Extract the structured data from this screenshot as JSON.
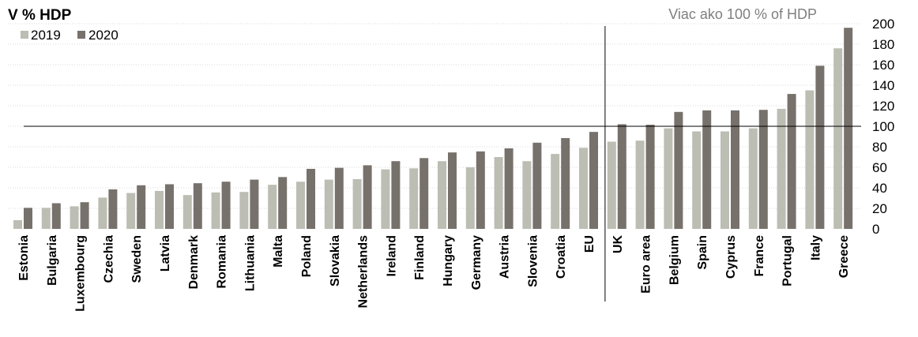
{
  "chart_data": {
    "type": "bar",
    "title": "V % HDP",
    "annotation": "Viac ako 100 % of HDP",
    "ylim": [
      0,
      200
    ],
    "yticks": [
      0,
      20,
      40,
      60,
      80,
      100,
      120,
      140,
      160,
      180,
      200
    ],
    "y_axis_side": "right",
    "grid": true,
    "legend_position": "top-left",
    "reference_line": 100,
    "divider_after_category": "EU",
    "categories": [
      "Estonia",
      "Bulgaria",
      "Luxembourg",
      "Czechia",
      "Sweden",
      "Latvia",
      "Denmark",
      "Romania",
      "Lithuania",
      "Malta",
      "Poland",
      "Slovakia",
      "Netherlands",
      "Ireland",
      "Finland",
      "Hungary",
      "Germany",
      "Austria",
      "Slovenia",
      "Croatia",
      "EU",
      "UK",
      "Euro area",
      "Belgium",
      "Spain",
      "Cyprus",
      "France",
      "Portugal",
      "Italy",
      "Greece"
    ],
    "series": [
      {
        "name": "2019",
        "color": "#bcbdb3",
        "values": [
          8.5,
          20.5,
          22,
          30.5,
          35,
          37,
          33,
          35.5,
          36,
          43,
          46,
          48,
          48.5,
          58,
          59,
          66,
          60,
          70,
          66,
          73,
          79,
          85,
          86,
          98,
          95,
          95,
          98,
          117,
          135,
          176
        ]
      },
      {
        "name": "2020",
        "color": "#77716c",
        "values": [
          20.5,
          25,
          26,
          38.5,
          42.5,
          43.5,
          44.5,
          46,
          48,
          50.5,
          58.5,
          59.5,
          62,
          66,
          69,
          74.5,
          75.5,
          78.5,
          84,
          88.5,
          94.5,
          102,
          101.5,
          114,
          115.5,
          115.5,
          116,
          131.5,
          159,
          196
        ]
      }
    ]
  }
}
